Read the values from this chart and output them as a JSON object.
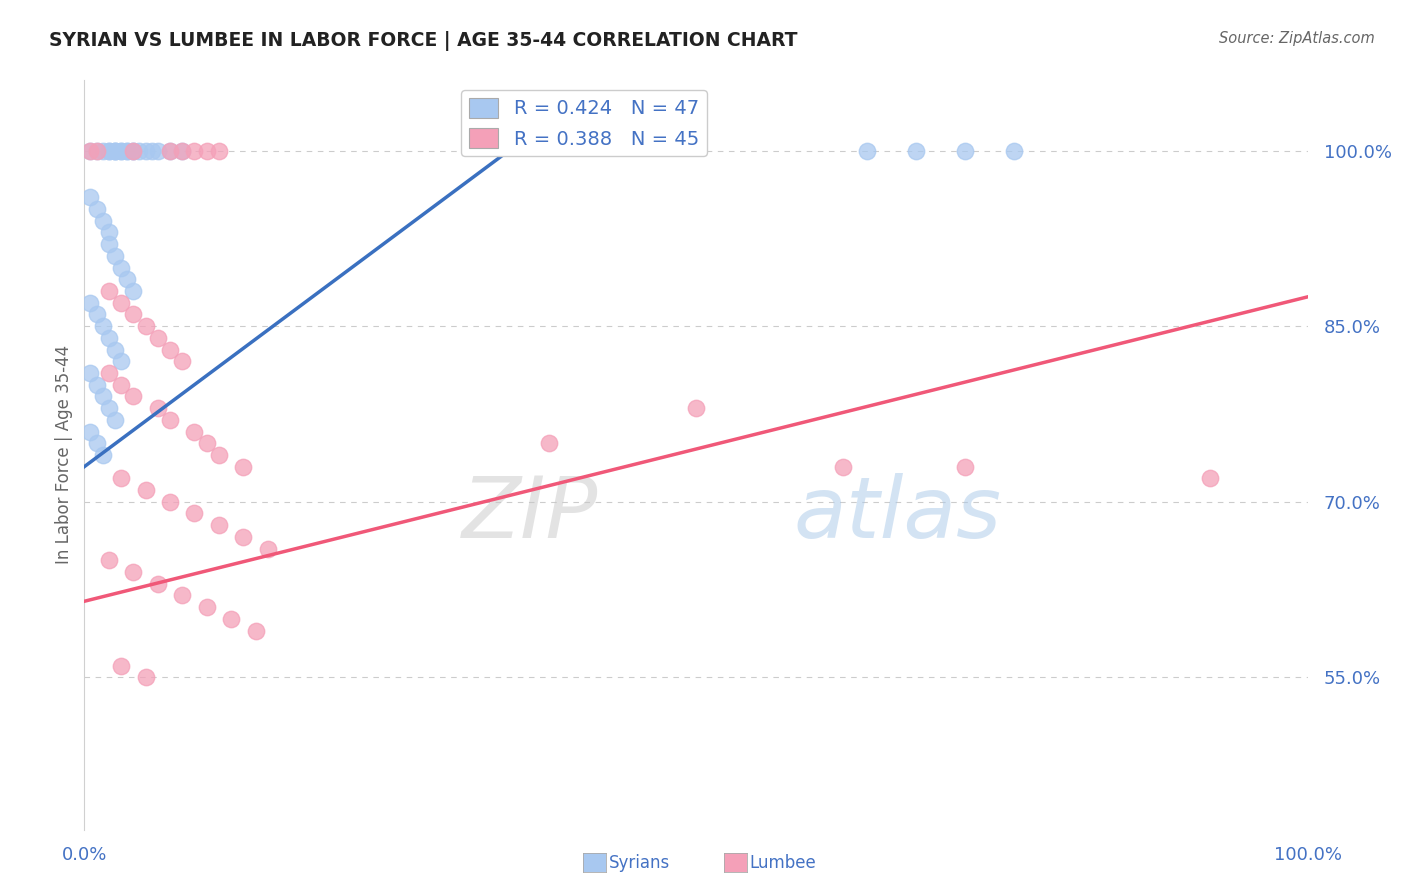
{
  "title": "SYRIAN VS LUMBEE IN LABOR FORCE | AGE 35-44 CORRELATION CHART",
  "source": "Source: ZipAtlas.com",
  "ylabel": "In Labor Force | Age 35-44",
  "watermark_zip": "ZIP",
  "watermark_atlas": "atlas",
  "legend_syrian": "R = 0.424   N = 47",
  "legend_lumbee": "R = 0.388   N = 45",
  "syrian_color": "#a8c8f0",
  "lumbee_color": "#f4a0b8",
  "syrian_line_color": "#3a70c0",
  "lumbee_line_color": "#f05878",
  "axis_label_color": "#4472c4",
  "xlim": [
    0.0,
    1.0
  ],
  "ylim": [
    0.42,
    1.06
  ],
  "yticks": [
    0.55,
    0.7,
    0.85,
    1.0
  ],
  "ytick_labels": [
    "55.0%",
    "70.0%",
    "85.0%",
    "100.0%"
  ],
  "syrian_x": [
    0.005,
    0.01,
    0.015,
    0.02,
    0.02,
    0.025,
    0.025,
    0.025,
    0.03,
    0.03,
    0.035,
    0.035,
    0.04,
    0.04,
    0.045,
    0.05,
    0.055,
    0.06,
    0.07,
    0.08,
    0.005,
    0.01,
    0.015,
    0.02,
    0.02,
    0.025,
    0.03,
    0.035,
    0.04,
    0.005,
    0.01,
    0.015,
    0.02,
    0.025,
    0.03,
    0.005,
    0.01,
    0.015,
    0.02,
    0.025,
    0.005,
    0.01,
    0.015,
    0.64,
    0.68,
    0.72,
    0.76
  ],
  "syrian_y": [
    1.0,
    1.0,
    1.0,
    1.0,
    1.0,
    1.0,
    1.0,
    1.0,
    1.0,
    1.0,
    1.0,
    1.0,
    1.0,
    1.0,
    1.0,
    1.0,
    1.0,
    1.0,
    1.0,
    1.0,
    0.96,
    0.95,
    0.94,
    0.93,
    0.92,
    0.91,
    0.9,
    0.89,
    0.88,
    0.87,
    0.86,
    0.85,
    0.84,
    0.83,
    0.82,
    0.81,
    0.8,
    0.79,
    0.78,
    0.77,
    0.76,
    0.75,
    0.74,
    1.0,
    1.0,
    1.0,
    1.0
  ],
  "lumbee_x": [
    0.005,
    0.01,
    0.04,
    0.07,
    0.08,
    0.09,
    0.1,
    0.11,
    0.02,
    0.03,
    0.04,
    0.05,
    0.06,
    0.07,
    0.08,
    0.02,
    0.03,
    0.04,
    0.06,
    0.07,
    0.09,
    0.1,
    0.11,
    0.13,
    0.03,
    0.05,
    0.07,
    0.09,
    0.11,
    0.13,
    0.15,
    0.02,
    0.04,
    0.06,
    0.08,
    0.1,
    0.12,
    0.14,
    0.03,
    0.05,
    0.38,
    0.5,
    0.62,
    0.72,
    0.92
  ],
  "lumbee_y": [
    1.0,
    1.0,
    1.0,
    1.0,
    1.0,
    1.0,
    1.0,
    1.0,
    0.88,
    0.87,
    0.86,
    0.85,
    0.84,
    0.83,
    0.82,
    0.81,
    0.8,
    0.79,
    0.78,
    0.77,
    0.76,
    0.75,
    0.74,
    0.73,
    0.72,
    0.71,
    0.7,
    0.69,
    0.68,
    0.67,
    0.66,
    0.65,
    0.64,
    0.63,
    0.62,
    0.61,
    0.6,
    0.59,
    0.56,
    0.55,
    0.75,
    0.78,
    0.73,
    0.73,
    0.72
  ],
  "syrian_trend_x": [
    0.0,
    0.36
  ],
  "syrian_trend_y": [
    0.73,
    1.01
  ],
  "lumbee_trend_x": [
    0.0,
    1.0
  ],
  "lumbee_trend_y": [
    0.615,
    0.875
  ],
  "grid_color": "#cccccc",
  "background_color": "#ffffff"
}
